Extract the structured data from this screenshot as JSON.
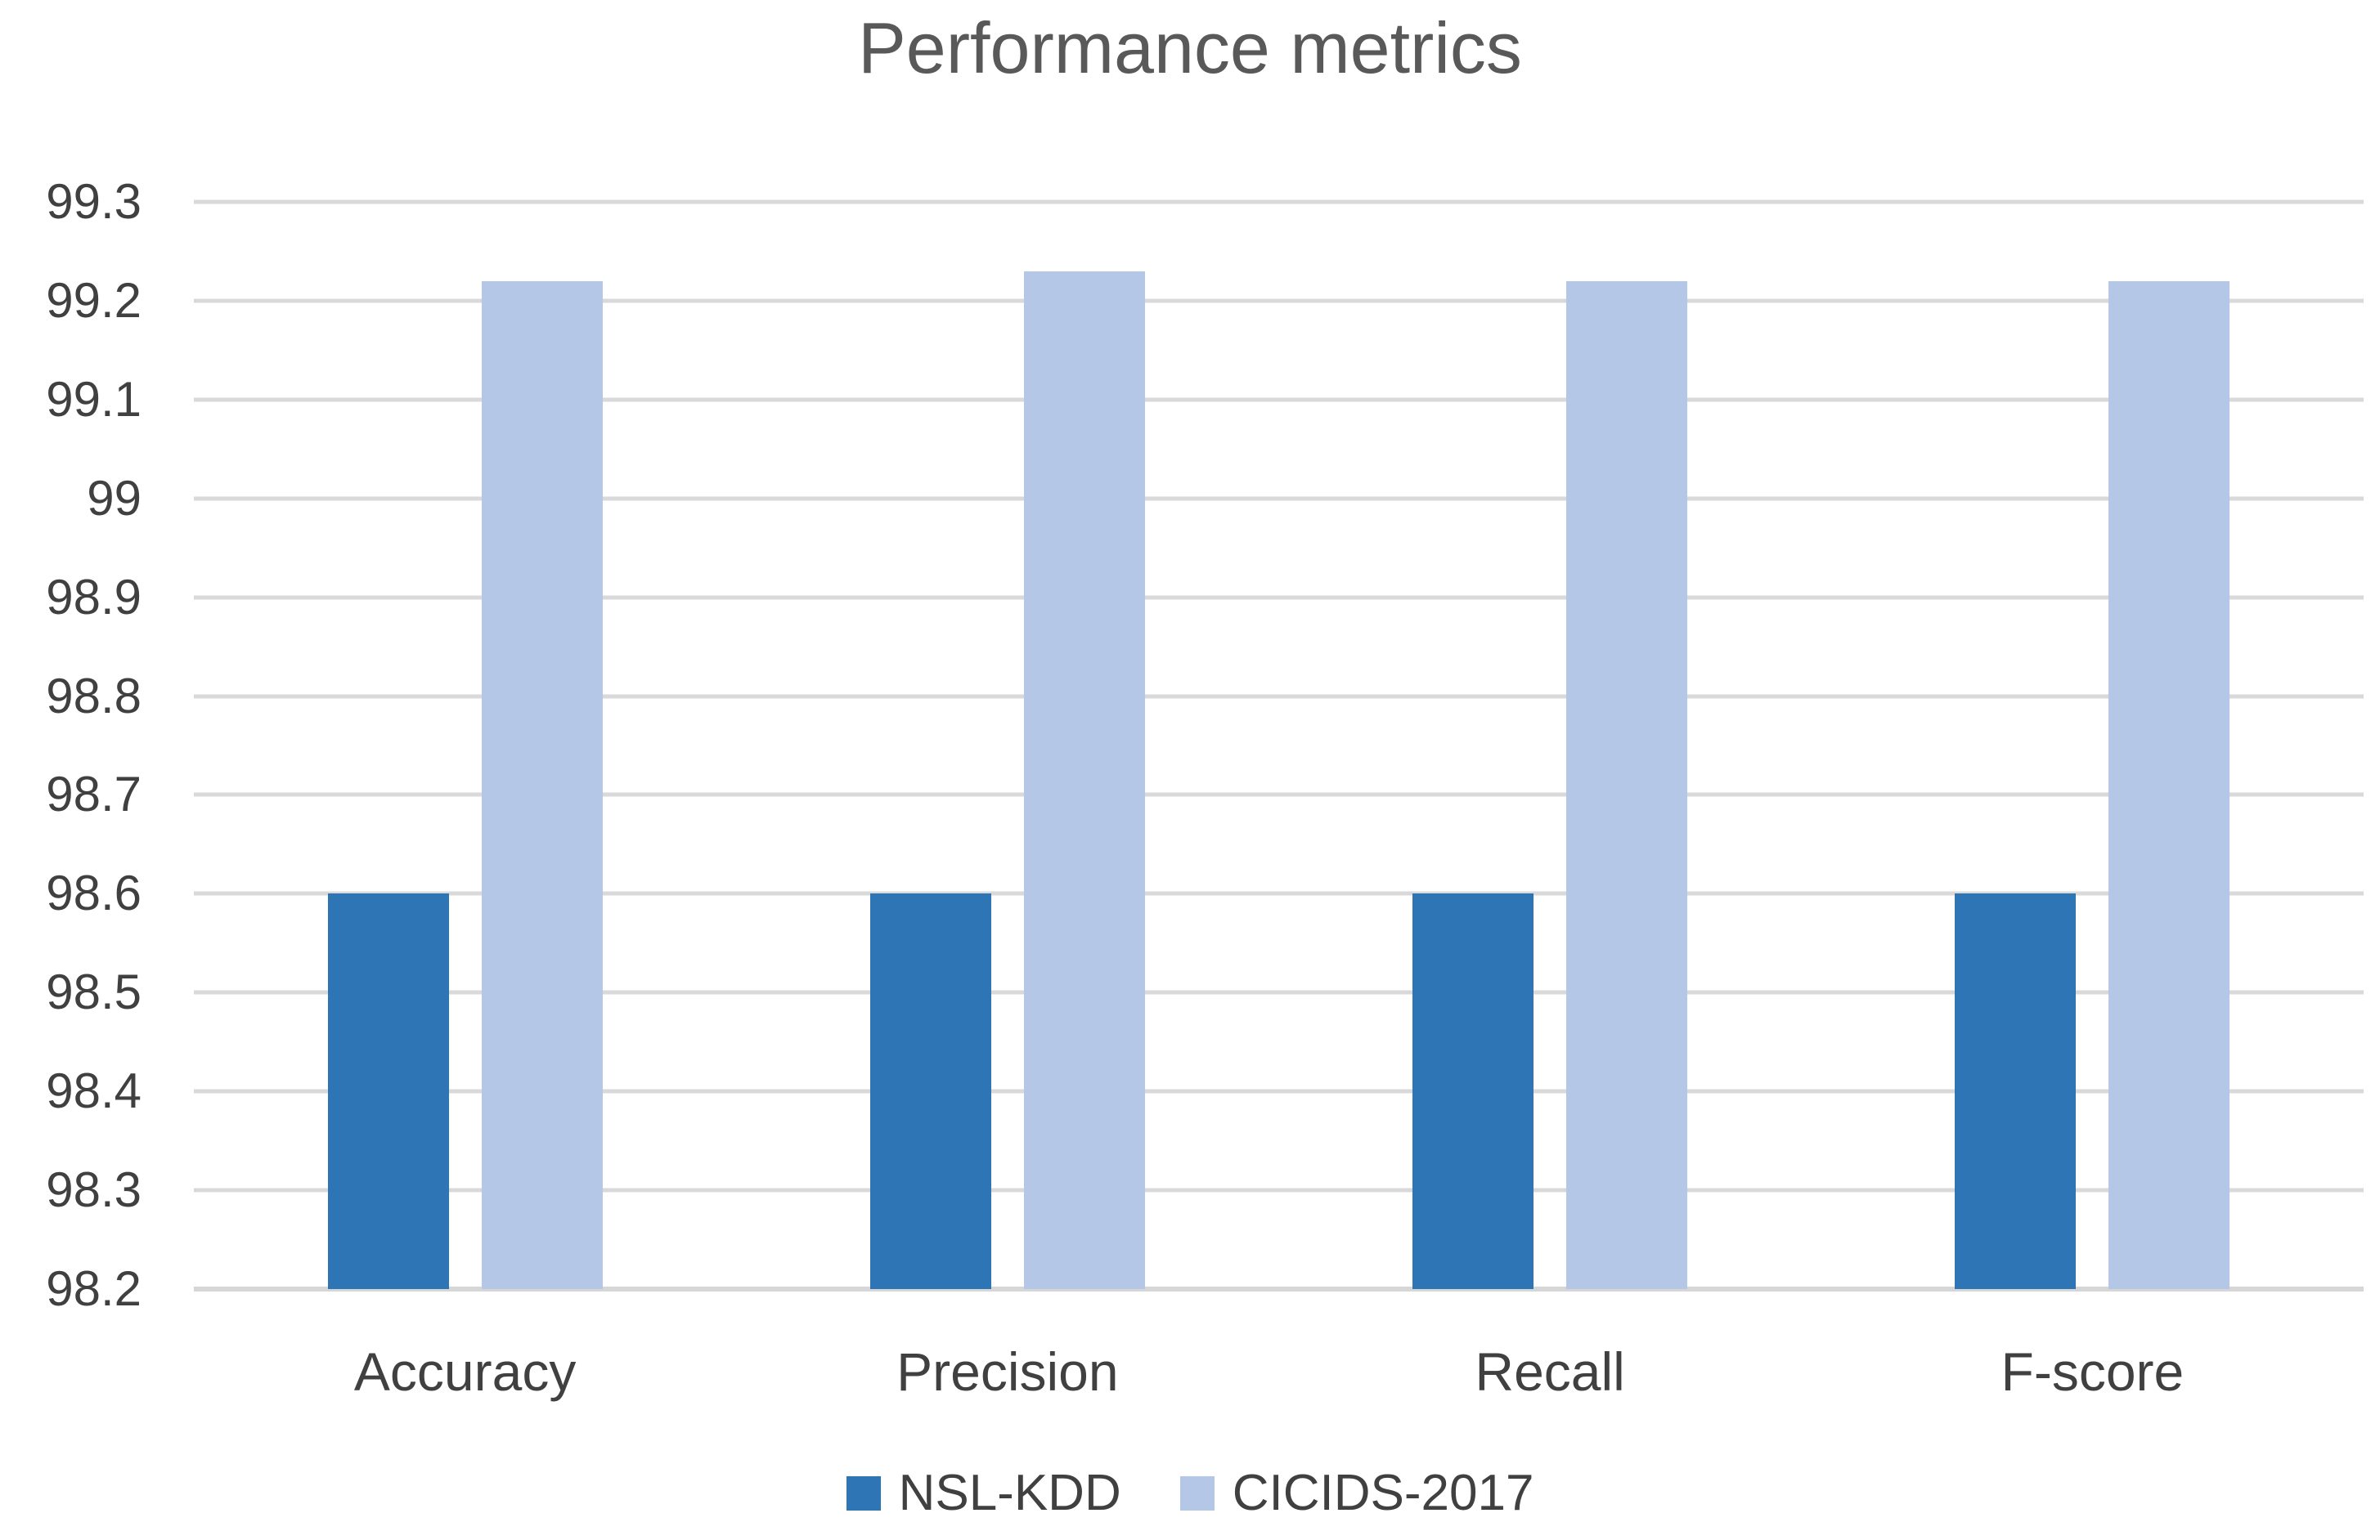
{
  "chart_data": {
    "type": "bar",
    "title": "Performance metrics",
    "xlabel": "",
    "ylabel": "",
    "categories": [
      "Accuracy",
      "Precision",
      "Recall",
      "F-score"
    ],
    "series": [
      {
        "name": "NSL-KDD",
        "color": "#2E75B6",
        "values": [
          98.6,
          98.6,
          98.6,
          98.6
        ]
      },
      {
        "name": "CICIDS-2017",
        "color": "#B4C7E7",
        "values": [
          99.22,
          99.23,
          99.22,
          99.22
        ]
      }
    ],
    "ylim": [
      98.2,
      99.3
    ],
    "yticks": [
      {
        "value": 99.3,
        "label": "99.3"
      },
      {
        "value": 99.2,
        "label": "99.2"
      },
      {
        "value": 99.1,
        "label": "99.1"
      },
      {
        "value": 99.0,
        "label": "99"
      },
      {
        "value": 98.9,
        "label": "98.9"
      },
      {
        "value": 98.8,
        "label": "98.8"
      },
      {
        "value": 98.7,
        "label": "98.7"
      },
      {
        "value": 98.6,
        "label": "98.6"
      },
      {
        "value": 98.5,
        "label": "98.5"
      },
      {
        "value": 98.4,
        "label": "98.4"
      },
      {
        "value": 98.3,
        "label": "98.3"
      },
      {
        "value": 98.2,
        "label": "98.2"
      }
    ],
    "grid": true,
    "legend_position": "bottom"
  },
  "colors": {
    "title_text": "#595959",
    "axis_text": "#404040",
    "gridline": "#D9D9D9",
    "background": "#FFFFFF"
  }
}
